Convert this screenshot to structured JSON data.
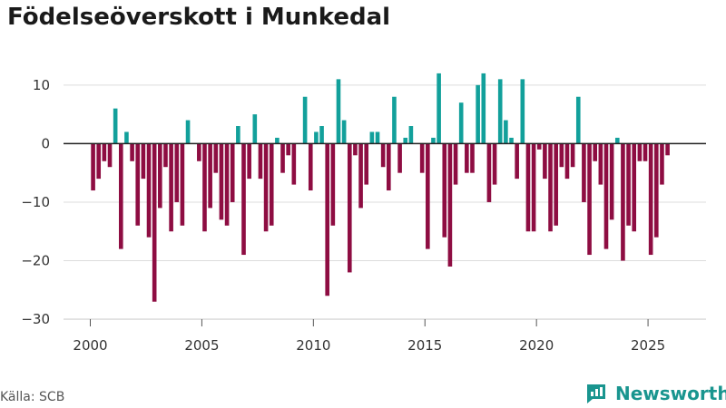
{
  "title": "Födelseöverskott i Munkedal",
  "source": "Källa: SCB",
  "brand": {
    "name": "Newsworthy",
    "icon": "newsworthy-logo-icon"
  },
  "colors": {
    "positive": "#12a09b",
    "negative": "#8e0d42",
    "grid": "#dddddd",
    "zero": "#222222",
    "brand": "#19958f"
  },
  "chart_data": {
    "type": "bar",
    "title": "Födelseöverskott i Munkedal",
    "xlabel": "",
    "ylabel": "",
    "ylim": [
      -32,
      14
    ],
    "xlim": [
      1998.8,
      2027.6
    ],
    "yticks": [
      10,
      0,
      -10,
      -20,
      -30
    ],
    "ytick_labels": [
      "10",
      "0",
      "−10",
      "−20",
      "−30"
    ],
    "xticks": [
      2000,
      2005,
      2010,
      2015,
      2020,
      2025
    ],
    "xtick_labels": [
      "2000",
      "2005",
      "2010",
      "2015",
      "2020",
      "2025"
    ],
    "grid": true,
    "frequency": "quarterly",
    "start": 2000,
    "values": [
      -8,
      -6,
      -3,
      -4,
      6,
      -18,
      2,
      -3,
      -14,
      -6,
      -16,
      -27,
      -11,
      -4,
      -15,
      -10,
      -14,
      4,
      0,
      -3,
      -15,
      -11,
      -5,
      -13,
      -14,
      -10,
      3,
      -19,
      -6,
      5,
      -6,
      -15,
      -14,
      1,
      -5,
      -2,
      -7,
      0,
      8,
      -8,
      2,
      3,
      -26,
      -14,
      11,
      4,
      -22,
      -2,
      -11,
      -7,
      2,
      2,
      -4,
      -8,
      8,
      -5,
      1,
      3,
      0,
      -5,
      -18,
      1,
      12,
      -16,
      -21,
      -7,
      7,
      -5,
      -5,
      10,
      12,
      -10,
      -7,
      11,
      4,
      1,
      -6,
      11,
      -15,
      -15,
      -1,
      -6,
      -15,
      -14,
      -4,
      -6,
      -4,
      8,
      -10,
      -19,
      -3,
      -7,
      -18,
      -13,
      1,
      -20,
      -14,
      -15,
      -3,
      -3,
      -19,
      -16,
      -7,
      -2
    ]
  }
}
